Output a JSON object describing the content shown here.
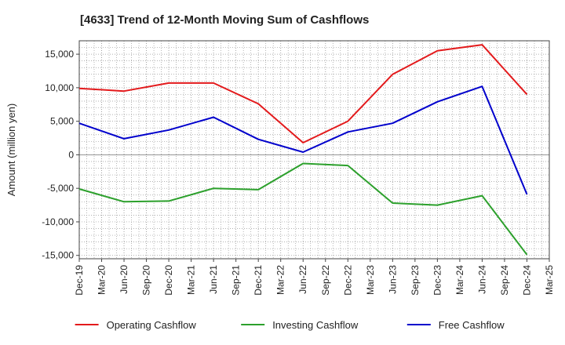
{
  "chart_data": {
    "type": "line",
    "title": "[4633]  Trend of 12-Month Moving Sum of Cashflows",
    "ylabel": "Amount (million yen)",
    "xlabel": "",
    "ylim": [
      -15500,
      17000
    ],
    "yticks": [
      -15000,
      -10000,
      -5000,
      0,
      5000,
      10000,
      15000
    ],
    "ytick_labels": [
      "-15,000",
      "-10,000",
      "-5,000",
      "0",
      "5,000",
      "10,000",
      "15,000"
    ],
    "categories": [
      "Dec-19",
      "Mar-20",
      "Jun-20",
      "Sep-20",
      "Dec-20",
      "Mar-21",
      "Jun-21",
      "Sep-21",
      "Dec-21",
      "Mar-22",
      "Jun-22",
      "Sep-22",
      "Dec-22",
      "Mar-23",
      "Jun-23",
      "Sep-23",
      "Dec-23",
      "Mar-24",
      "Jun-24",
      "Sep-24",
      "Dec-24",
      "Mar-25"
    ],
    "grid": true,
    "legend_position": "bottom",
    "series": [
      {
        "name": "Operating Cashflow",
        "color": "#e31a1c",
        "values": [
          9900,
          null,
          9500,
          null,
          10700,
          null,
          10700,
          null,
          7600,
          null,
          1800,
          null,
          5000,
          null,
          12000,
          null,
          15500,
          null,
          16400,
          null,
          9000,
          null
        ]
      },
      {
        "name": "Investing Cashflow",
        "color": "#2ca02c",
        "values": [
          -5100,
          null,
          -7000,
          null,
          -6900,
          null,
          -5000,
          null,
          -5200,
          null,
          -1300,
          null,
          -1600,
          null,
          -7200,
          null,
          -7500,
          null,
          -6100,
          null,
          -14900,
          null
        ]
      },
      {
        "name": "Free Cashflow",
        "color": "#0000cc",
        "values": [
          4700,
          null,
          2400,
          null,
          3700,
          null,
          5600,
          null,
          2300,
          null,
          400,
          null,
          3400,
          null,
          4700,
          null,
          7900,
          null,
          10200,
          null,
          -5900,
          null
        ]
      }
    ]
  }
}
